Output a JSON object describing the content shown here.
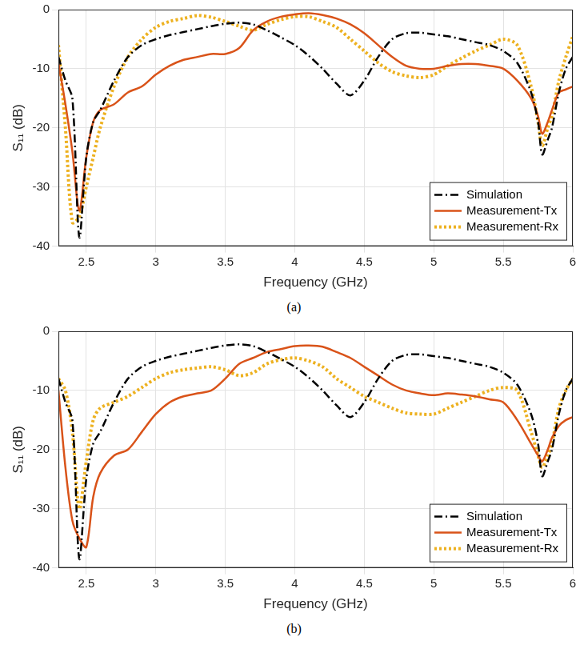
{
  "chart_data": [
    {
      "type": "line",
      "caption": "(a)",
      "x_label": "Frequency (GHz)",
      "y_label": "S₁₁ (dB)",
      "x": [
        2.3,
        2.35,
        2.4,
        2.45,
        2.5,
        2.55,
        2.6,
        2.7,
        2.8,
        2.9,
        3.0,
        3.1,
        3.2,
        3.3,
        3.4,
        3.5,
        3.6,
        3.7,
        3.8,
        3.9,
        4.0,
        4.1,
        4.2,
        4.3,
        4.4,
        4.5,
        4.6,
        4.7,
        4.8,
        4.9,
        5.0,
        5.1,
        5.2,
        5.3,
        5.4,
        5.5,
        5.6,
        5.7,
        5.75,
        5.78,
        5.82,
        5.85,
        5.9,
        5.95,
        6.0
      ],
      "series": [
        {
          "name": "Simulation",
          "color": "#000000",
          "line_style": "dashdot",
          "values": [
            -8,
            -12,
            -15,
            -38.5,
            -25,
            -19,
            -17,
            -12,
            -8,
            -6,
            -5,
            -4.3,
            -3.8,
            -3.3,
            -2.8,
            -2.4,
            -2.2,
            -2.5,
            -3.5,
            -4.7,
            -6,
            -7.8,
            -10,
            -12.5,
            -14.5,
            -12,
            -8,
            -5,
            -4,
            -3.9,
            -4.2,
            -4.5,
            -5,
            -5.5,
            -6,
            -7,
            -9,
            -14,
            -19,
            -24.5,
            -22,
            -20,
            -14,
            -10,
            -8
          ]
        },
        {
          "name": "Measurement-Tx",
          "color": "#d95319",
          "line_style": "solid",
          "values": [
            -9,
            -16,
            -24,
            -34,
            -25,
            -19,
            -17,
            -16,
            -14,
            -13,
            -11,
            -9.5,
            -8.5,
            -8,
            -7.5,
            -7.5,
            -6.5,
            -3.5,
            -2,
            -1.2,
            -0.8,
            -0.6,
            -0.9,
            -1.5,
            -2.5,
            -4,
            -6,
            -8,
            -9.5,
            -10,
            -10,
            -9.5,
            -9.2,
            -9.2,
            -9.5,
            -10,
            -12,
            -15,
            -18,
            -21,
            -19,
            -17,
            -14,
            -13.5,
            -13
          ]
        },
        {
          "name": "Measurement-Rx",
          "color": "#edb120",
          "line_style": "dotted",
          "values": [
            -6,
            -20,
            -36,
            -35,
            -30,
            -25,
            -20,
            -13,
            -8,
            -5,
            -3,
            -2,
            -1.5,
            -1,
            -1.3,
            -2,
            -2.8,
            -3.5,
            -2.5,
            -1.7,
            -1.2,
            -1.2,
            -2,
            -3,
            -5,
            -7,
            -9,
            -10.5,
            -11.2,
            -11.5,
            -11,
            -9.5,
            -8.2,
            -7,
            -6,
            -5,
            -6,
            -13,
            -19,
            -23,
            -20,
            -18,
            -12,
            -8,
            -4.5
          ]
        }
      ],
      "xlim": [
        2.3,
        6
      ],
      "xticks": [
        2.5,
        3,
        3.5,
        4,
        4.5,
        5,
        5.5,
        6
      ],
      "ylim": [
        -40,
        0
      ],
      "yticks": [
        -40,
        -30,
        -20,
        -10,
        0
      ],
      "grid": true,
      "legend": "lower right"
    },
    {
      "type": "line",
      "caption": "(b)",
      "x_label": "Frequency (GHz)",
      "y_label": "S₁₁ (dB)",
      "x": [
        2.3,
        2.35,
        2.4,
        2.45,
        2.5,
        2.55,
        2.6,
        2.7,
        2.8,
        2.9,
        3.0,
        3.1,
        3.2,
        3.3,
        3.4,
        3.5,
        3.6,
        3.7,
        3.8,
        3.9,
        4.0,
        4.1,
        4.2,
        4.3,
        4.4,
        4.5,
        4.6,
        4.7,
        4.8,
        4.9,
        5.0,
        5.1,
        5.2,
        5.3,
        5.4,
        5.5,
        5.6,
        5.7,
        5.75,
        5.78,
        5.82,
        5.85,
        5.9,
        5.95,
        6.0
      ],
      "series": [
        {
          "name": "Simulation",
          "color": "#000000",
          "line_style": "dashdot",
          "values": [
            -8,
            -12,
            -15,
            -38.5,
            -25,
            -19,
            -17,
            -12,
            -8,
            -6,
            -5,
            -4.3,
            -3.8,
            -3.3,
            -2.8,
            -2.4,
            -2.2,
            -2.5,
            -3.5,
            -4.7,
            -6,
            -7.8,
            -10,
            -12.5,
            -14.5,
            -12,
            -8,
            -5,
            -4,
            -3.9,
            -4.2,
            -4.5,
            -5,
            -5.5,
            -6,
            -7,
            -9,
            -14,
            -19,
            -24.5,
            -22,
            -20,
            -14,
            -10,
            -8
          ]
        },
        {
          "name": "Measurement-Tx",
          "color": "#d95319",
          "line_style": "solid",
          "values": [
            -10,
            -23,
            -32,
            -35,
            -36.5,
            -28,
            -24,
            -21,
            -20,
            -17,
            -14,
            -12,
            -11,
            -10.5,
            -10,
            -8,
            -5.5,
            -4.5,
            -3.5,
            -3,
            -2.5,
            -2.4,
            -2.6,
            -3.5,
            -4.5,
            -6,
            -7.5,
            -9,
            -10,
            -10.5,
            -10.8,
            -10.5,
            -10.7,
            -11,
            -11.5,
            -12,
            -15,
            -19,
            -21,
            -22,
            -20,
            -18,
            -16,
            -15,
            -14.5
          ]
        },
        {
          "name": "Measurement-Rx",
          "color": "#edb120",
          "line_style": "dotted",
          "values": [
            -8,
            -10,
            -17,
            -30,
            -22,
            -15,
            -13,
            -12,
            -11,
            -9.5,
            -8,
            -7,
            -6.5,
            -6.2,
            -6,
            -6.5,
            -7.5,
            -7,
            -5.5,
            -4.8,
            -4.5,
            -5,
            -6,
            -8,
            -9.5,
            -11,
            -12,
            -13,
            -13.8,
            -14,
            -14,
            -13,
            -12,
            -11,
            -10,
            -9.5,
            -10,
            -17,
            -21,
            -23,
            -21,
            -19,
            -13,
            -10,
            -8
          ]
        }
      ],
      "xlim": [
        2.3,
        6
      ],
      "xticks": [
        2.5,
        3,
        3.5,
        4,
        4.5,
        5,
        5.5,
        6
      ],
      "ylim": [
        -40,
        0
      ],
      "yticks": [
        -40,
        -30,
        -20,
        -10,
        0
      ],
      "grid": true,
      "legend": "lower right"
    }
  ]
}
